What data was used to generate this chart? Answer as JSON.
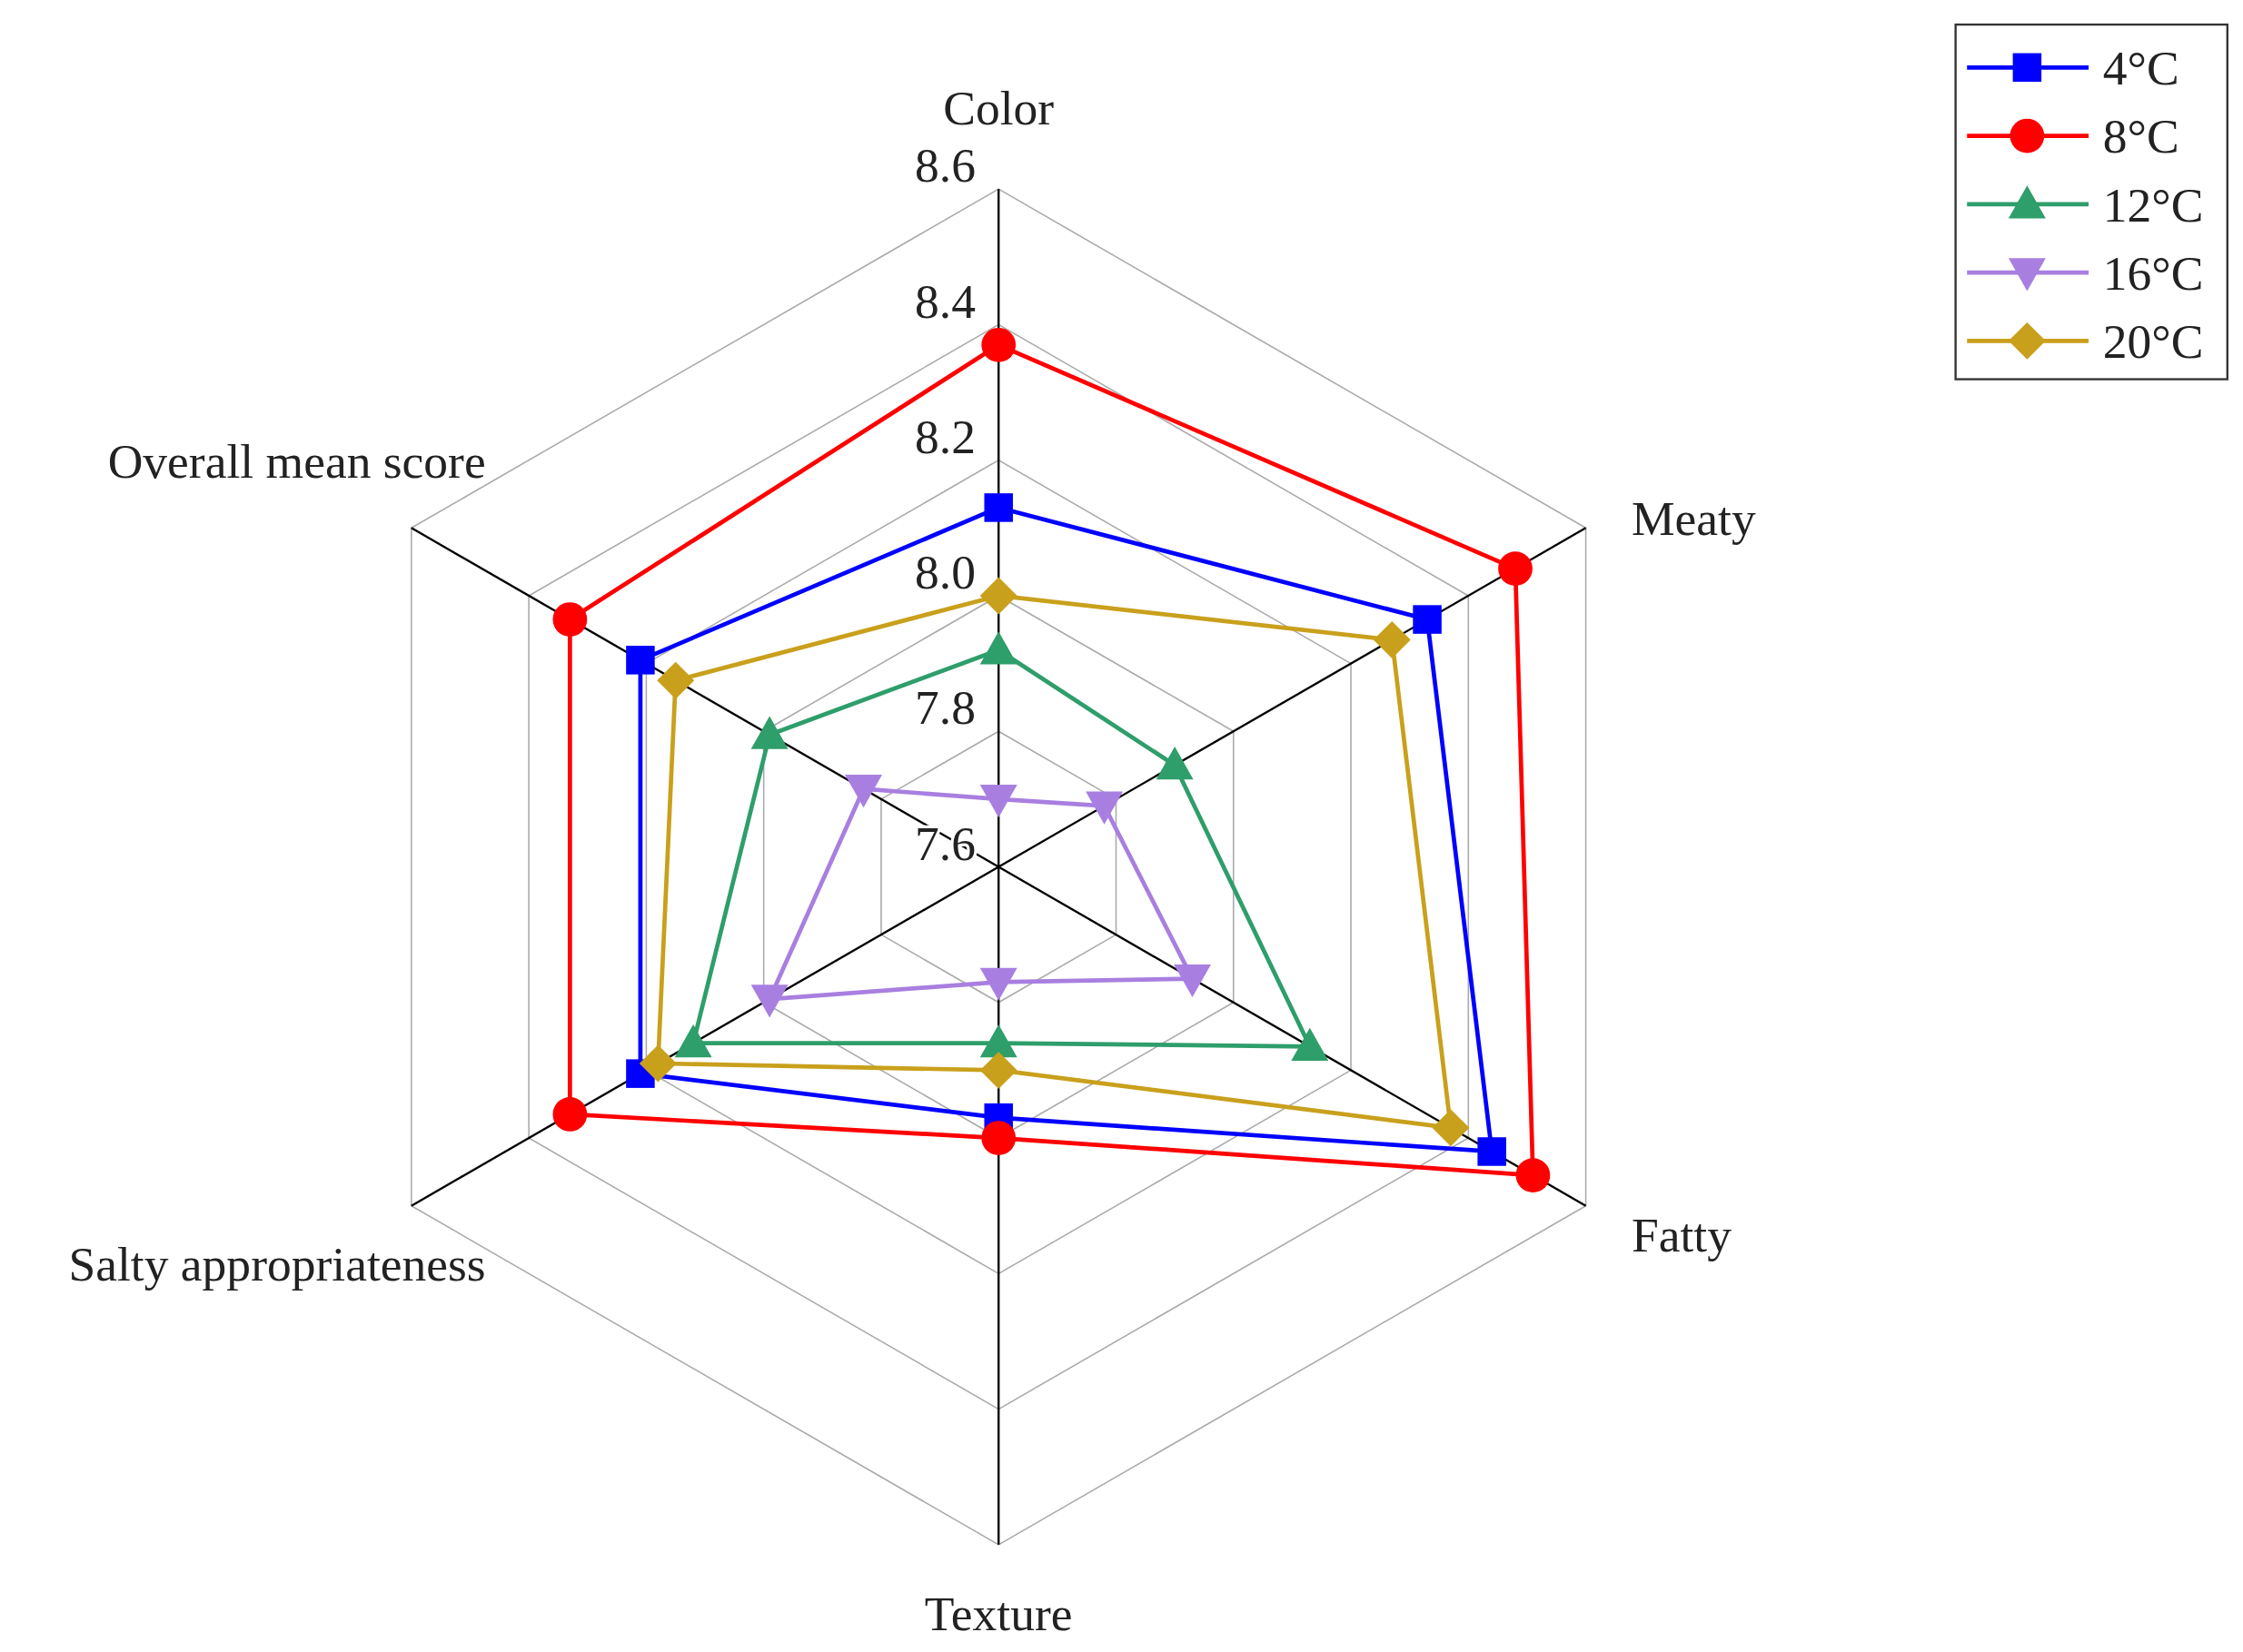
{
  "chart_data": {
    "type": "radar",
    "categories": [
      "Color",
      "Meaty",
      "Fatty",
      "Texture",
      "Salty appropriateness",
      "Overall mean score"
    ],
    "ylim": [
      7.6,
      8.6
    ],
    "yticks": [
      7.6,
      7.8,
      {
        "value": 8.0,
        "label": "8.0"
      },
      8.2,
      8.4,
      8.6
    ],
    "grid": true,
    "legend": "top right",
    "series": [
      {
        "name": "4°C",
        "color": "#0000ff",
        "marker": "square",
        "values": [
          8.13,
          8.33,
          8.44,
          7.97,
          8.21,
          8.21
        ]
      },
      {
        "name": "8°C",
        "color": "#ff0000",
        "marker": "circle",
        "values": [
          8.37,
          8.48,
          8.51,
          8.0,
          8.33,
          8.33
        ]
      },
      {
        "name": "12°C",
        "color": "#2e9e6a",
        "marker": "triangle",
        "values": [
          7.92,
          7.9,
          8.13,
          7.86,
          8.12,
          7.99
        ]
      },
      {
        "name": "16°C",
        "color": "#a87fe0",
        "marker": "triangle-down",
        "values": [
          7.7,
          7.78,
          7.93,
          7.77,
          7.99,
          7.83
        ]
      },
      {
        "name": "20°C",
        "color": "#c9a01c",
        "marker": "diamond",
        "values": [
          8.0,
          8.27,
          8.37,
          7.9,
          8.18,
          8.15
        ]
      }
    ]
  }
}
